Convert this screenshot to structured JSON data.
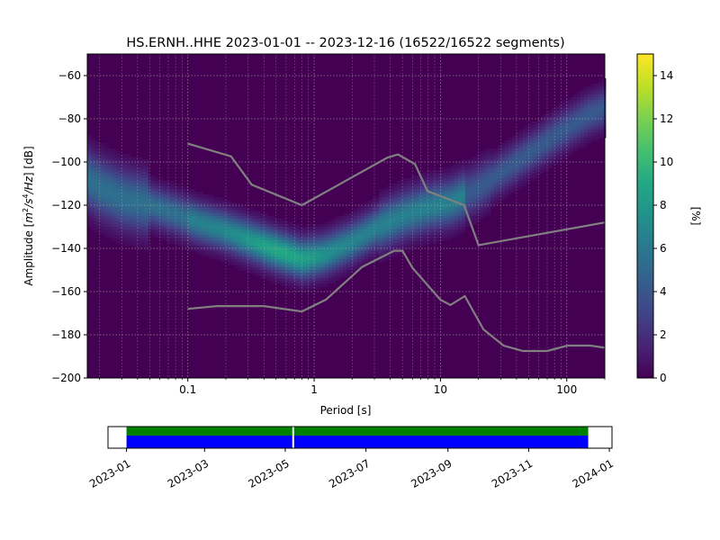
{
  "chart_data": [
    {
      "type": "heatmap",
      "title": "HS.ERNH..HHE   2023-01-01 -- 2023-12-16  (16522/16522 segments)",
      "xlabel": "Period [s]",
      "ylabel_prefix": "Amplitude [",
      "ylabel_unit": {
        "a": "m",
        "b": "2",
        "c": "/s",
        "d": "4",
        "e": "/Hz",
        "f": "] [dB]"
      },
      "x_scale": "log",
      "xlim": [
        0.016,
        200
      ],
      "ylim": [
        -200,
        -50
      ],
      "x_ticks": [
        {
          "value": 0.1,
          "label": "0.1"
        },
        {
          "value": 1,
          "label": "1"
        },
        {
          "value": 10,
          "label": "10"
        },
        {
          "value": 100,
          "label": "100"
        }
      ],
      "y_ticks": [
        {
          "value": -60,
          "label": "−60"
        },
        {
          "value": -80,
          "label": "−80"
        },
        {
          "value": -100,
          "label": "−100"
        },
        {
          "value": -120,
          "label": "−120"
        },
        {
          "value": -140,
          "label": "−140"
        },
        {
          "value": -160,
          "label": "−160"
        },
        {
          "value": -180,
          "label": "−180"
        },
        {
          "value": -200,
          "label": "−200"
        }
      ],
      "grid": true,
      "colormap": "viridis",
      "colorbar": {
        "label": "[%]",
        "range": [
          0,
          15
        ],
        "ticks": [
          {
            "value": 0,
            "label": "0"
          },
          {
            "value": 2,
            "label": "2"
          },
          {
            "value": 4,
            "label": "4"
          },
          {
            "value": 6,
            "label": "6"
          },
          {
            "value": 8,
            "label": "8"
          },
          {
            "value": 10,
            "label": "10"
          },
          {
            "value": 12,
            "label": "12"
          },
          {
            "value": 14,
            "label": "14"
          }
        ]
      },
      "mode_ridge": [
        {
          "period": 0.016,
          "db": -108
        },
        {
          "period": 0.02,
          "db": -112
        },
        {
          "period": 0.03,
          "db": -117
        },
        {
          "period": 0.05,
          "db": -120
        },
        {
          "period": 0.08,
          "db": -124
        },
        {
          "period": 0.12,
          "db": -128
        },
        {
          "period": 0.2,
          "db": -132
        },
        {
          "period": 0.3,
          "db": -136
        },
        {
          "period": 0.5,
          "db": -141
        },
        {
          "period": 0.8,
          "db": -145
        },
        {
          "period": 1.2,
          "db": -143
        },
        {
          "period": 2,
          "db": -137
        },
        {
          "period": 3,
          "db": -131
        },
        {
          "period": 5,
          "db": -125
        },
        {
          "period": 8,
          "db": -121
        },
        {
          "period": 12,
          "db": -119
        },
        {
          "period": 20,
          "db": -112
        },
        {
          "period": 40,
          "db": -100
        },
        {
          "period": 80,
          "db": -88
        },
        {
          "period": 150,
          "db": -78
        },
        {
          "period": 200,
          "db": -75
        }
      ],
      "noise_models": [
        {
          "name": "high",
          "color": "#808080",
          "points": [
            {
              "period": 0.1,
              "db": -91.5
            },
            {
              "period": 0.22,
              "db": -97.4
            },
            {
              "period": 0.32,
              "db": -110.5
            },
            {
              "period": 0.8,
              "db": -120
            },
            {
              "period": 3.8,
              "db": -98
            },
            {
              "period": 4.6,
              "db": -96.5
            },
            {
              "period": 6.3,
              "db": -101
            },
            {
              "period": 7.9,
              "db": -113.5
            },
            {
              "period": 15.4,
              "db": -120
            },
            {
              "period": 20,
              "db": -138.5
            },
            {
              "period": 200,
              "db": -128
            }
          ]
        },
        {
          "name": "low",
          "color": "#808080",
          "points": [
            {
              "period": 0.1,
              "db": -168
            },
            {
              "period": 0.17,
              "db": -166.7
            },
            {
              "period": 0.4,
              "db": -166.7
            },
            {
              "period": 0.8,
              "db": -169.2
            },
            {
              "period": 1.24,
              "db": -163.7
            },
            {
              "period": 2.4,
              "db": -148.6
            },
            {
              "period": 4.3,
              "db": -141.1
            },
            {
              "period": 5,
              "db": -141.1
            },
            {
              "period": 6,
              "db": -149
            },
            {
              "period": 10,
              "db": -163.8
            },
            {
              "period": 12,
              "db": -166.2
            },
            {
              "period": 15.6,
              "db": -162.1
            },
            {
              "period": 21.9,
              "db": -177.5
            },
            {
              "period": 31.6,
              "db": -185
            },
            {
              "period": 45,
              "db": -187.5
            },
            {
              "period": 70,
              "db": -187.5
            },
            {
              "period": 101,
              "db": -185
            },
            {
              "period": 154,
              "db": -185
            },
            {
              "period": 200,
              "db": -186
            }
          ]
        }
      ]
    },
    {
      "type": "timeline",
      "x_ticks": [
        "2023-01",
        "2023-03",
        "2023-05",
        "2023-07",
        "2023-09",
        "2023-11",
        "2024-01"
      ],
      "xlim": [
        "2022-12-18",
        "2024-01-03"
      ],
      "data_span": [
        "2023-01-01",
        "2023-12-16"
      ],
      "gap_date": "2023-05-07",
      "colors": {
        "available": "#008000",
        "used": "#0000ff",
        "gap": "#ffffff"
      }
    }
  ]
}
